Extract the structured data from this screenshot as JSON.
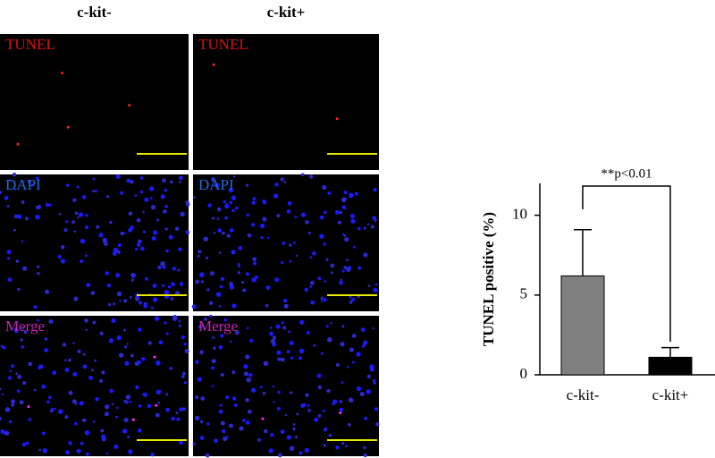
{
  "panels": {
    "columns": [
      "c-kit-",
      "c-kit+"
    ],
    "rows": [
      "TUNEL",
      "DAPI",
      "Merge"
    ]
  },
  "chart_data": {
    "type": "bar",
    "ylabel": "TUNEL positive (%)",
    "categories": [
      "c-kit-",
      "c-kit+"
    ],
    "values": [
      6.2,
      1.1
    ],
    "errors": [
      2.9,
      0.6
    ],
    "colors": [
      "#808080",
      "#000000"
    ],
    "ylim": [
      0,
      12
    ],
    "yticks": [
      0,
      5,
      10
    ],
    "annotation": "**p<0.01"
  }
}
